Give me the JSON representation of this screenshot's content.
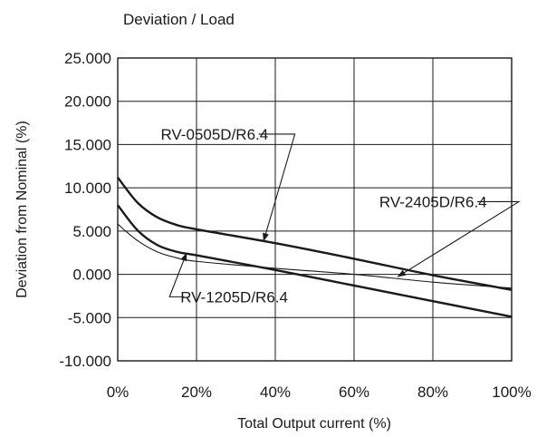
{
  "chart_data": {
    "type": "line",
    "title": "Deviation / Load",
    "xlabel": "Total Output current (%)",
    "ylabel": "Deviation from Nominal (%)",
    "x_ticks": [
      "0%",
      "20%",
      "40%",
      "60%",
      "80%",
      "100%"
    ],
    "y_ticks": [
      "25.000",
      "20.000",
      "15.000",
      "10.000",
      "5.000",
      "0.000",
      "-5.000",
      "-10.000"
    ],
    "xlim": [
      0,
      100
    ],
    "ylim": [
      -10,
      25
    ],
    "grid": true,
    "series": [
      {
        "name": "RV-0505D/R6.4",
        "x": [
          0,
          5,
          10,
          15,
          20,
          40,
          60,
          80,
          100
        ],
        "y": [
          11.2,
          8.3,
          6.6,
          5.7,
          5.2,
          3.6,
          1.8,
          -0.1,
          -1.8
        ]
      },
      {
        "name": "RV-1205D/R6.4",
        "x": [
          0,
          5,
          10,
          15,
          20,
          40,
          60,
          80,
          100
        ],
        "y": [
          8.0,
          5.1,
          3.4,
          2.6,
          2.2,
          0.5,
          -1.3,
          -3.1,
          -4.9
        ]
      },
      {
        "name": "RV-2405D/R6.4",
        "x": [
          0,
          5,
          10,
          15,
          20,
          40,
          60,
          80,
          100
        ],
        "y": [
          5.8,
          3.9,
          2.6,
          1.9,
          1.5,
          0.7,
          0.0,
          -0.9,
          -1.6
        ]
      }
    ],
    "annotations": [
      {
        "text": "RV-0505D/R6.4",
        "series": "RV-0505D/R6.4",
        "label_x": 27,
        "label_y": 16.2,
        "target_x": 37,
        "target_y": 3.8
      },
      {
        "text": "RV-2405D/R6.4",
        "series": "RV-2405D/R6.4",
        "label_x": 82.5,
        "label_y": 8.4,
        "target_x": 71,
        "target_y": -0.3
      },
      {
        "text": "RV-1205D/R6.4",
        "series": "RV-1205D/R6.4",
        "label_x": 32,
        "label_y": -2.6,
        "target_x": 17.5,
        "target_y": 2.5
      }
    ]
  }
}
